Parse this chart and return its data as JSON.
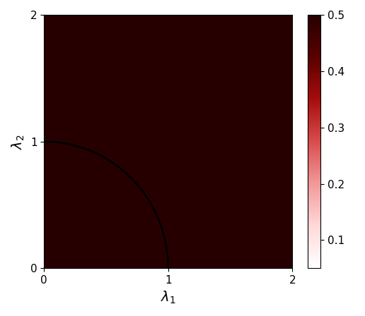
{
  "xlim": [
    0,
    2
  ],
  "ylim": [
    0,
    2
  ],
  "xlabel": "$\\lambda_1$",
  "ylabel": "$\\lambda_2$",
  "xlabel_fontsize": 14,
  "ylabel_fontsize": 14,
  "xticks": [
    0,
    1,
    2
  ],
  "yticks": [
    0,
    1,
    2
  ],
  "cbar_ticks": [
    0.1,
    0.2,
    0.3,
    0.4,
    0.5
  ],
  "vmin": 0.05,
  "vmax": 0.5,
  "n_points": 500,
  "figsize": [
    5.16,
    4.48
  ],
  "dpi": 100
}
